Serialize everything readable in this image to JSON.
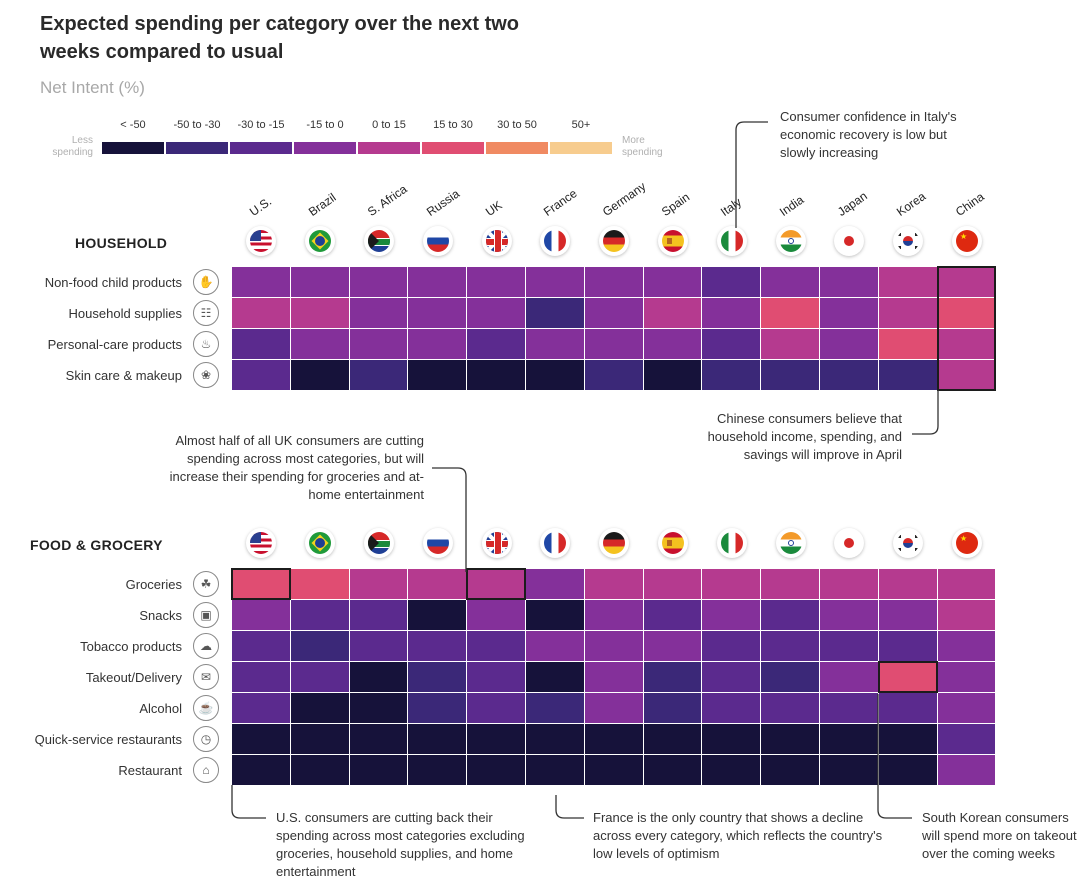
{
  "header": {
    "title": "Expected spending per category over the next two weeks compared to usual",
    "subtitle": "Net Intent (%)"
  },
  "legend": {
    "less_label": "Less spending",
    "more_label": "More spending",
    "bins": [
      {
        "label": "< -50",
        "color": "#16123a"
      },
      {
        "label": "-50 to -30",
        "color": "#3b2878"
      },
      {
        "label": "-30 to -15",
        "color": "#5b2a8e"
      },
      {
        "label": "-15 to 0",
        "color": "#84309a"
      },
      {
        "label": "0 to 15",
        "color": "#b53a8f"
      },
      {
        "label": "15 to 30",
        "color": "#e04d72"
      },
      {
        "label": "30 to 50",
        "color": "#f08a62"
      },
      {
        "label": "50+",
        "color": "#f7cc8e"
      }
    ]
  },
  "countries": [
    "U.S.",
    "Brazil",
    "S. Africa",
    "Russia",
    "UK",
    "France",
    "Germany",
    "Spain",
    "Italy",
    "India",
    "Japan",
    "Korea",
    "China"
  ],
  "flags": [
    "us-flag-icon",
    "brazil-flag-icon",
    "south-africa-flag-icon",
    "russia-flag-icon",
    "uk-flag-icon",
    "france-flag-icon",
    "germany-flag-icon",
    "spain-flag-icon",
    "italy-flag-icon",
    "india-flag-icon",
    "japan-flag-icon",
    "korea-flag-icon",
    "china-flag-icon"
  ],
  "chart_data": [
    {
      "type": "heatmap",
      "section": "HOUSEHOLD",
      "categories": [
        "Non-food child products",
        "Household supplies",
        "Personal-care products",
        "Skin care & makeup"
      ],
      "category_icons": [
        "child-products-icon",
        "household-supplies-icon",
        "personal-care-icon",
        "skin-care-icon"
      ],
      "bins": [
        [
          3,
          3,
          3,
          3,
          3,
          3,
          3,
          3,
          2,
          3,
          3,
          4,
          4
        ],
        [
          4,
          4,
          3,
          3,
          3,
          1,
          3,
          4,
          3,
          5,
          3,
          4,
          5
        ],
        [
          2,
          3,
          3,
          3,
          2,
          3,
          3,
          3,
          2,
          4,
          3,
          5,
          4
        ],
        [
          2,
          0,
          1,
          0,
          0,
          0,
          1,
          0,
          1,
          1,
          1,
          1,
          4
        ]
      ]
    },
    {
      "type": "heatmap",
      "section": "FOOD & GROCERY",
      "categories": [
        "Groceries",
        "Snacks",
        "Tobacco products",
        "Takeout/Delivery",
        "Alcohol",
        "Quick-service restaurants",
        "Restaurant"
      ],
      "category_icons": [
        "groceries-icon",
        "snacks-icon",
        "tobacco-icon",
        "takeout-icon",
        "alcohol-icon",
        "quick-service-icon",
        "restaurant-icon"
      ],
      "bins": [
        [
          5,
          5,
          4,
          4,
          4,
          3,
          4,
          4,
          4,
          4,
          4,
          4,
          4
        ],
        [
          3,
          2,
          2,
          0,
          3,
          0,
          3,
          2,
          3,
          2,
          3,
          3,
          4
        ],
        [
          2,
          1,
          2,
          2,
          2,
          3,
          3,
          3,
          2,
          2,
          2,
          2,
          3
        ],
        [
          2,
          2,
          0,
          1,
          2,
          0,
          3,
          1,
          2,
          1,
          3,
          5,
          3
        ],
        [
          2,
          0,
          0,
          1,
          2,
          1,
          3,
          1,
          2,
          2,
          2,
          2,
          3
        ],
        [
          0,
          0,
          0,
          0,
          0,
          0,
          0,
          0,
          0,
          0,
          0,
          0,
          2
        ],
        [
          0,
          0,
          0,
          0,
          0,
          0,
          0,
          0,
          0,
          0,
          0,
          0,
          3
        ]
      ]
    }
  ],
  "annotations": {
    "italy": "Consumer confidence in Italy's economic recovery is low but slowly increasing",
    "china": "Chinese consumers believe that household income, spending, and savings will improve in April",
    "uk": "Almost half of all UK consumers are cutting spending across most categories, but will increase their spending for groceries and at-home entertainment",
    "us": "U.S. consumers are cutting back their spending across most categories excluding groceries, household supplies, and home entertainment",
    "france": "France is the only country that shows a decline across every category, which reflects the country's low levels of optimism",
    "korea": "South Korean consumers will spend more on takeout over the coming weeks"
  }
}
